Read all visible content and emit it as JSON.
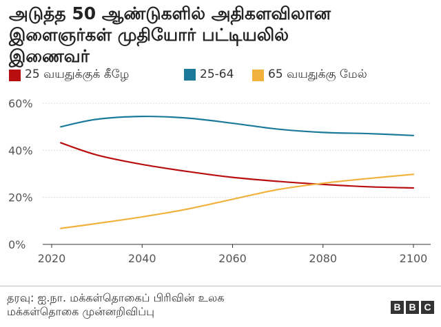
{
  "header": {
    "title_lines": [
      "அடுத்த 50 ஆண்டுகளில் அதிகளவிலான",
      "இளைஞர்கள் முதியோர் பட்டியலில்",
      "இணைவர்"
    ]
  },
  "colors": {
    "series_under25": "#b80e10",
    "series_25_64": "#1b7a9a",
    "series_65plus": "#f0b23c",
    "grid": "#d9d9d9",
    "baseline": "#333333"
  },
  "chart_data": {
    "type": "line",
    "ylim": [
      0,
      60
    ],
    "xlim": [
      2020,
      2100
    ],
    "yticks": [
      0,
      20,
      40,
      60
    ],
    "ytick_labels": [
      "0%",
      "20%",
      "40%",
      "60%"
    ],
    "xticks": [
      2020,
      2040,
      2060,
      2080,
      2100
    ],
    "xtick_labels": [
      "2020",
      "2040",
      "2060",
      "2080",
      "2100"
    ],
    "grid": true,
    "legend_position": "top",
    "x": [
      2022,
      2030,
      2040,
      2050,
      2060,
      2070,
      2080,
      2090,
      2100
    ],
    "series": [
      {
        "name": "25 வயதுக்குக் கீழே",
        "color": "#b80e10",
        "values": [
          43.2,
          38.0,
          34.0,
          31.0,
          28.5,
          26.8,
          25.5,
          24.5,
          24.0
        ]
      },
      {
        "name": "25-64",
        "color": "#1b7a9a",
        "values": [
          50.0,
          53.2,
          54.4,
          53.7,
          51.5,
          49.0,
          47.6,
          47.1,
          46.3
        ]
      },
      {
        "name": "65 வயதுக்கு மேல்",
        "color": "#f0b23c",
        "values": [
          6.8,
          8.9,
          11.7,
          15.0,
          19.2,
          23.3,
          26.0,
          28.0,
          29.8
        ]
      }
    ]
  },
  "footer": {
    "source_lines": [
      "தரவு: ஐ.நா. மக்கள்தொகைப் பிரிவின் உலக",
      "மக்கள்தொகை முன்னறிவிப்பு"
    ],
    "logo_letters": [
      "B",
      "B",
      "C"
    ]
  }
}
